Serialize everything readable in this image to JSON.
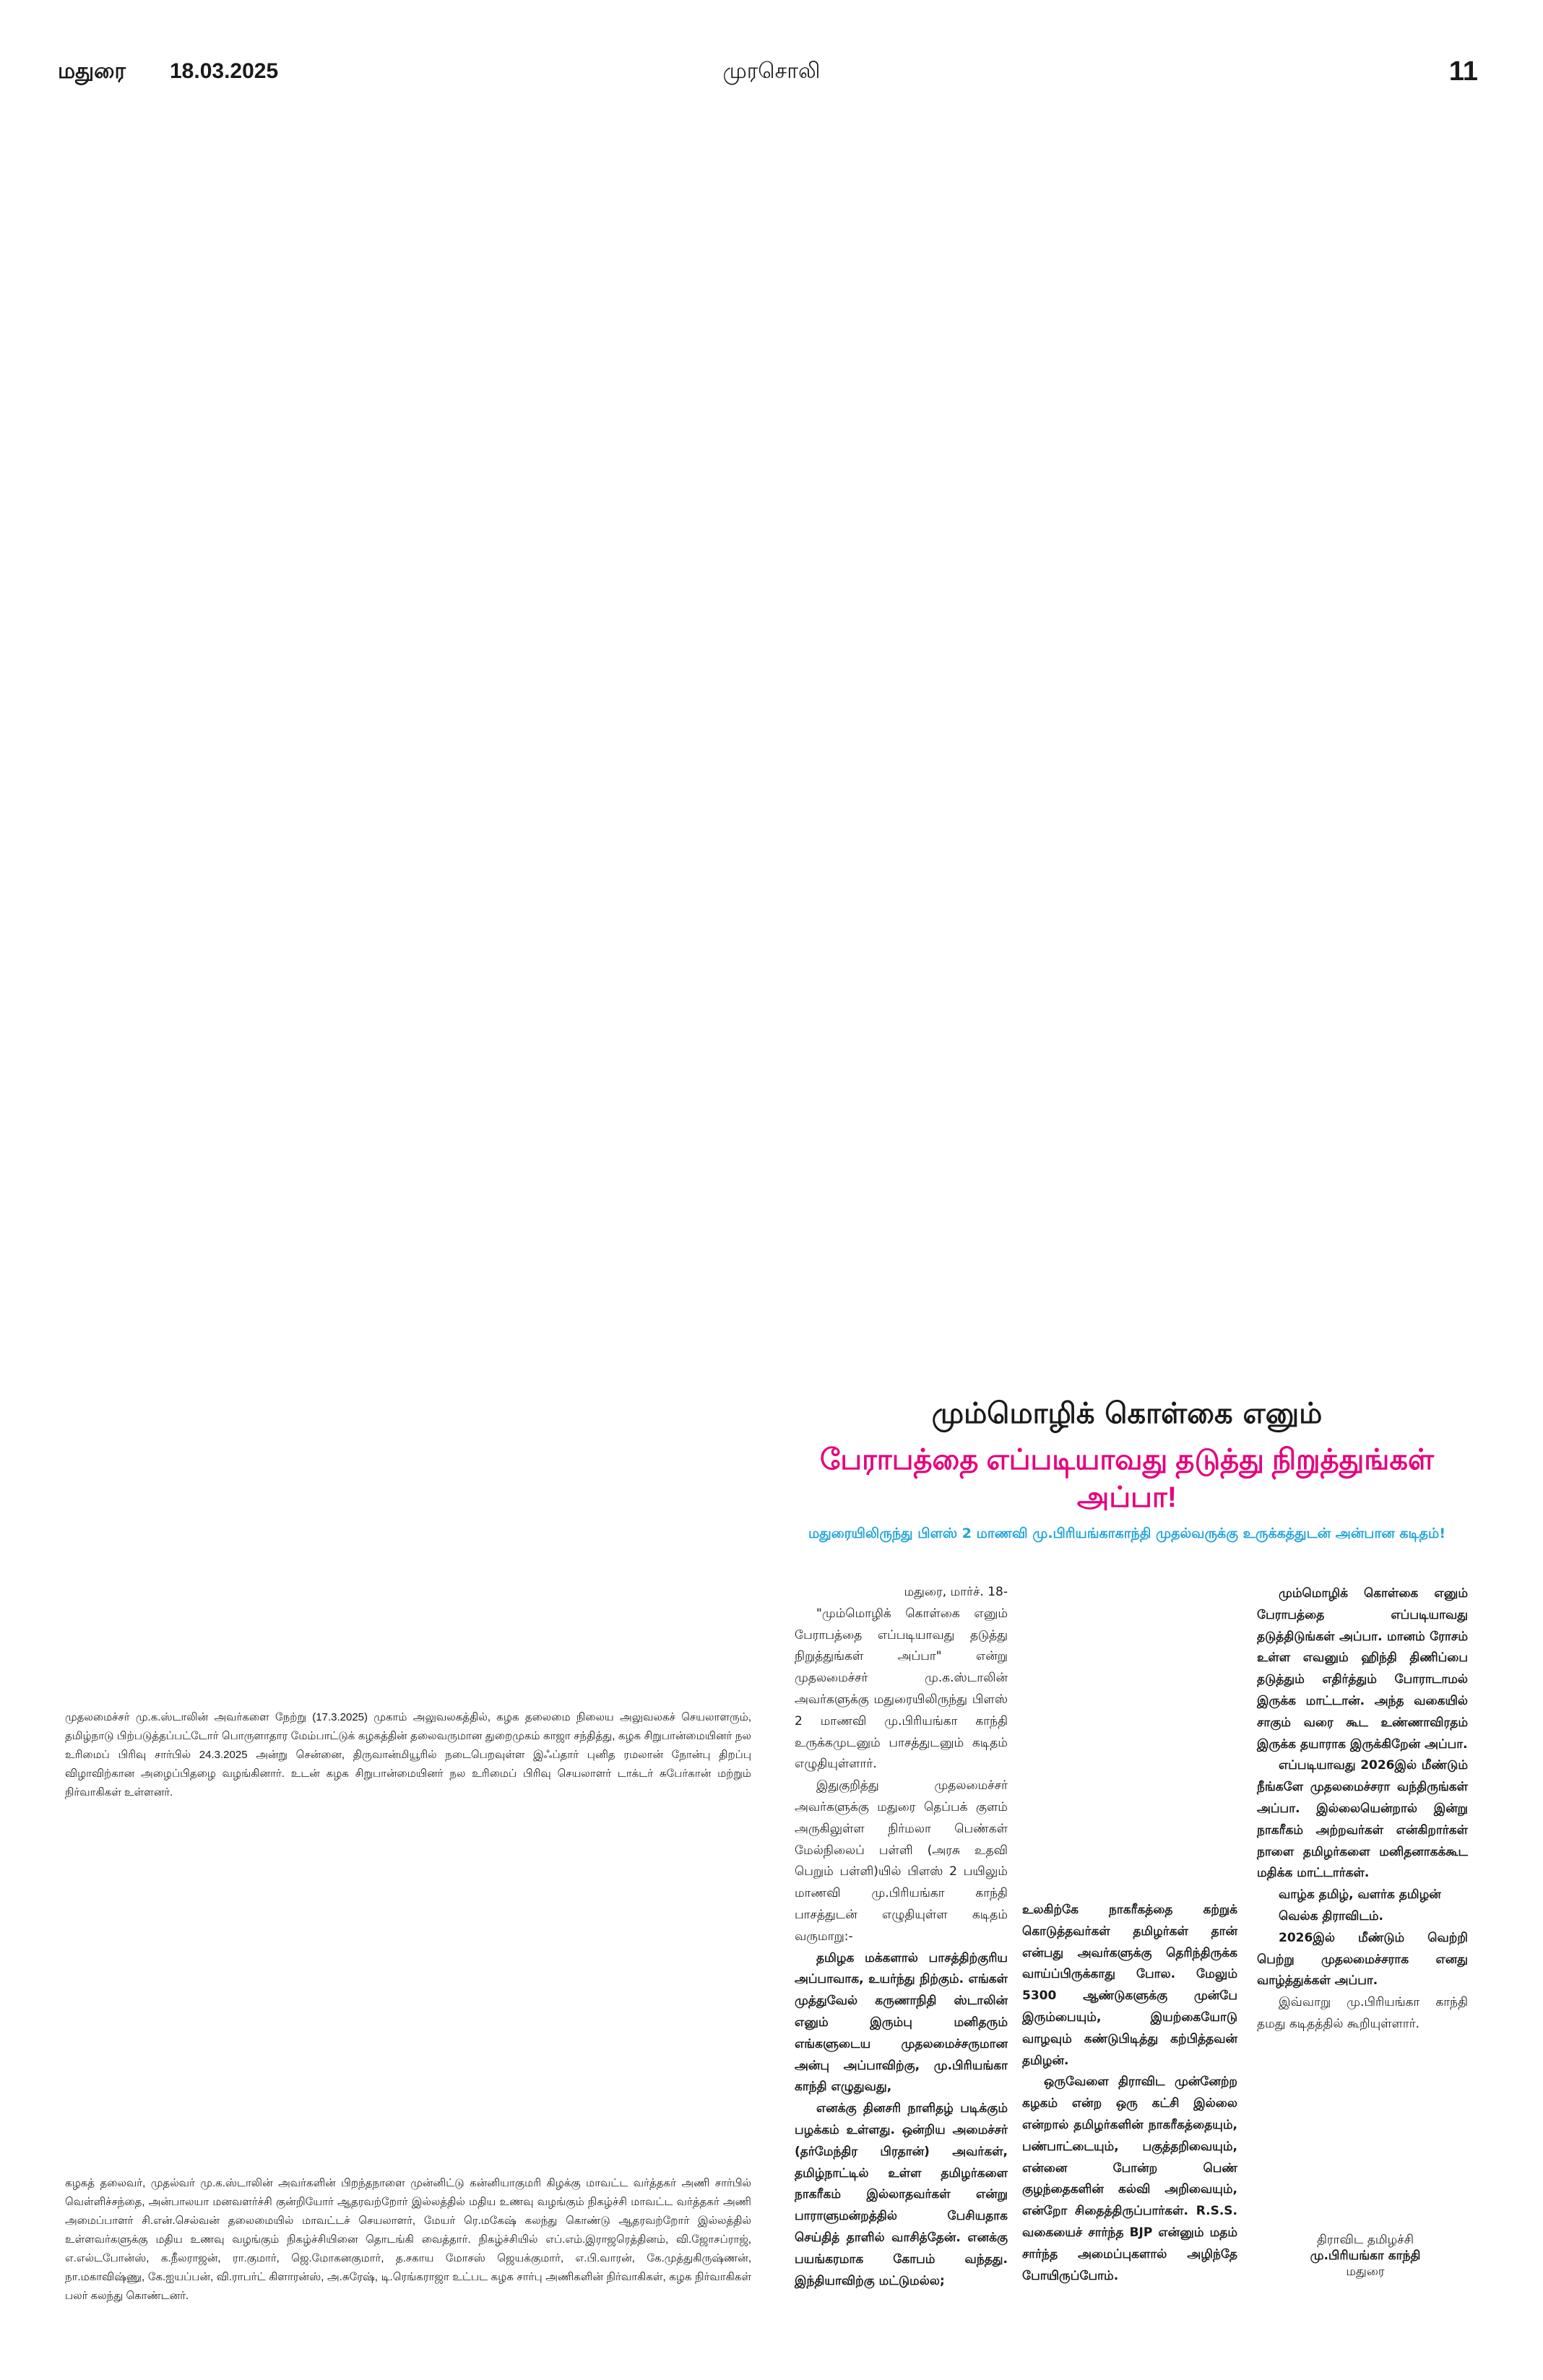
{
  "header": {
    "city": "மதுரை",
    "date": "18.03.2025",
    "masthead": "முரசொலி",
    "page_number": "11"
  },
  "article": {
    "kicker": "மும்மொழிக் கொள்கை எனும்",
    "headline": "பேராபத்தை எப்படியாவது தடுத்து நிறுத்துங்கள் அப்பா!",
    "subhead": "மதுரையிலிருந்து பிளஸ் 2 மாணவி மு.பிரியங்காகாந்தி முதல்வருக்கு உருக்கத்துடன் அன்பான கடிதம்!",
    "dateline": "மதுரை, மார்ச். 18-",
    "col1": [
      "\"மும்மொழிக் கொள்கை எனும் பேராபத்தை எப்படியாவது தடுத்து நிறுத்துங்கள் அப்பா\" என்று முதலமைச்சர் மு.க.ஸ்டாலின் அவர்களுக்கு மதுரையிலிருந்து பிளஸ் 2 மாணவி மு.பிரியங்கா காந்தி உருக்கமுடனும் பாசத்துடனும் கடிதம் எழுதியுள்ளார்.",
      "இதுகுறித்து முதலமைச்சர் அவர்களுக்கு மதுரை தெப்பக் குளம் அருகிலுள்ள நிர்மலா பெண்கள் மேல்நிலைப் பள்ளி (அரசு உதவி பெறும் பள்ளி)யில் பிளஸ் 2 பயிலும் மாணவி மு.பிரியங்கா காந்தி பாசத்துடன் எழுதியுள்ள கடிதம் வருமாறு:-"
    ],
    "col1_bold": [
      "தமிழக மக்களால் பாசத்திற்குரிய அப்பாவாக, உயர்ந்து நிற்கும். எங்கள் முத்துவேல் கருணாநிதி ஸ்டாலின் எனும் இரும்பு மனிதரும் எங்களுடைய முதலமைச்சருமான அன்பு அப்பாவிற்கு, மு.பிரியங்கா காந்தி எழுதுவது,",
      "எனக்கு தினசரி நாளிதழ் படிக்கும் பழக்கம் உள்ளது. ஒன்றிய அமைச்சர் (தர்மேந்திர பிரதான்) அவர்கள், தமிழ்நாட்டில் உள்ள தமிழர்களை நாகரீகம் இல்லாதவர்கள் என்று பாராளுமன்றத்தில் பேசியதாக செய்தித் தாளில் வாசித்தேன். எனக்கு பயங்கரமாக கோபம் வந்தது. இந்தியாவிற்கு மட்டுமல்ல;"
    ],
    "col2": [
      "உலகிற்கே நாகரீகத்தை கற்றுக் கொடுத்தவர்கள் தமிழர்கள் தான் என்பது அவர்களுக்கு தெரிந்திருக்க வாய்ப்பிருக்காது போல. மேலும் 5300 ஆண்டுகளுக்கு முன்பே இரும்பையும், இயற்கையோடு வாழவும் கண்டுபிடித்து கற்பித்தவன் தமிழன்.",
      "ஒருவேளை திராவிட முன்னேற்ற கழகம் என்ற ஒரு கட்சி இல்லை என்றால் தமிழர்களின் நாகரீகத்தையும், பண்பாட்டையும், பகுத்தறிவையும், என்னை போன்ற பெண் குழந்தைகளின் கல்வி அறிவையும், என்றோ சிதைத்திருப்பார்கள். R.S.S. வகையைச் சார்ந்த BJP என்னும் மதம் சார்ந்த அமைப்புகளால் அழிந்தே போயிருப்போம்."
    ],
    "col3_bold": [
      "மும்மொழிக் கொள்கை எனும் பேராபத்தை எப்படியாவது தடுத்திடுங்கள் அப்பா. மானம் ரோசம் உள்ள எவனும் ஹிந்தி திணிப்பை தடுத்தும் எதிர்த்தும் போராடாமல் இருக்க மாட்டான். அந்த வகையில் சாகும் வரை கூட உண்ணாவிரதம் இருக்க தயாராக இருக்கிறேன் அப்பா.",
      "எப்படியாவது 2026இல் மீண்டும் நீங்களே முதலமைச்சரா வந்திருங்கள் அப்பா. இல்லையென்றால் இன்று நாகரீகம் அற்றவர்கள் என்கிறார்கள் நாளை தமிழர்களை மனிதனாகக்கூட மதிக்க மாட்டார்கள்.",
      "வாழ்க தமிழ், வளர்க தமிழன்",
      "வெல்க திராவிடம்.",
      "2026இல் மீண்டும் வெற்றி பெற்று முதலமைச்சராக எனது வாழ்த்துக்கள் அப்பா."
    ],
    "col3_closing": "இவ்வாறு மு.பிரியங்கா காந்தி தமது கடிதத்தில் கூறியுள்ளார்.",
    "signature": {
      "line1": "திராவிட தமிழச்சி",
      "name": "மு.பிரியங்கா காந்தி",
      "place": "மதுரை"
    }
  },
  "captions": [
    "முதலமைச்சர் மு.க.ஸ்டாலின் அவர்களை நேற்று (17.3.2025) முகாம் அலுவலகத்தில், கழக தலைமை நிலைய அலுவலகச் செயலாளரும், தமிழ்நாடு பிற்படுத்தப்பட்டோர் பொருளாதார மேம்பாட்டுக் கழகத்தின் தலைவருமான துறைமுகம் காஜா சந்தித்து, கழக சிறுபான்மையினர் நல உரிமைப் பிரிவு சார்பில் 24.3.2025 அன்று சென்னை, திருவான்மியூரில் நடைபெறவுள்ள இஃப்தார் புனித ரமலான் நோன்பு திறப்பு விழாவிற்கான அழைப்பிதழை வழங்கினார். உடன் கழக சிறுபான்மையினர் நல உரிமைப் பிரிவு செயலாளர் டாக்டர் சுபேர்கான் மற்றும் நிர்வாகிகள் உள்ளனர்.",
    "கழகத் தலைவர், முதல்வர் மு.க.ஸ்டாலின் அவர்களின் பிறந்தநாளை முன்னிட்டு கன்னியாகுமரி கிழக்கு மாவட்ட வர்த்தகர் அணி சார்பில் வெள்ளிச்சந்தை, அன்பாலயா மனவளர்ச்சி குன்றியோர் ஆதரவற்றோர் இல்லத்தில் மதிய உணவு வழங்கும் நிகழ்ச்சி மாவட்ட வர்த்தகர் அணி அமைப்பாளர் சி.என்.செல்வன் தலைமையில் மாவட்டச் செயலாளர், மேயர் ரெ.மகேஷ் கலந்து கொண்டு ஆதரவற்றோர் இல்லத்தில் உள்ளவர்களுக்கு மதிய உணவு வழங்கும் நிகழ்ச்சியினை தொடங்கி வைத்தார். நிகழ்ச்சியில் எப்.எம்.இராஜரெத்தினம், வி.ஜோசப்ராஜ், எ.எல்டபோன்ஸ், க.நீலராஜன், ரா.குமார், ஜெ.மோகனகுமார், த.சகாய மோசஸ் ஜெயக்குமார், எ.பி.வாரன், கே.முத்துகிருஷ்ணன், நா.மகாவிஷ்ணு, கே.ஐயப்பன், வி.ராபர்ட் கிளாரன்ஸ், அ.சுரேஷ், டி.ரெங்கராஜா உட்பட கழக சார்பு அணிகளின் நிர்வாகிகள், கழக நிர்வாகிகள் பலர் கலந்து கொண்டனர்."
  ],
  "colors": {
    "headline": "#e6007e",
    "subhead": "#1fa3dc",
    "text": "#1a1a1a"
  }
}
